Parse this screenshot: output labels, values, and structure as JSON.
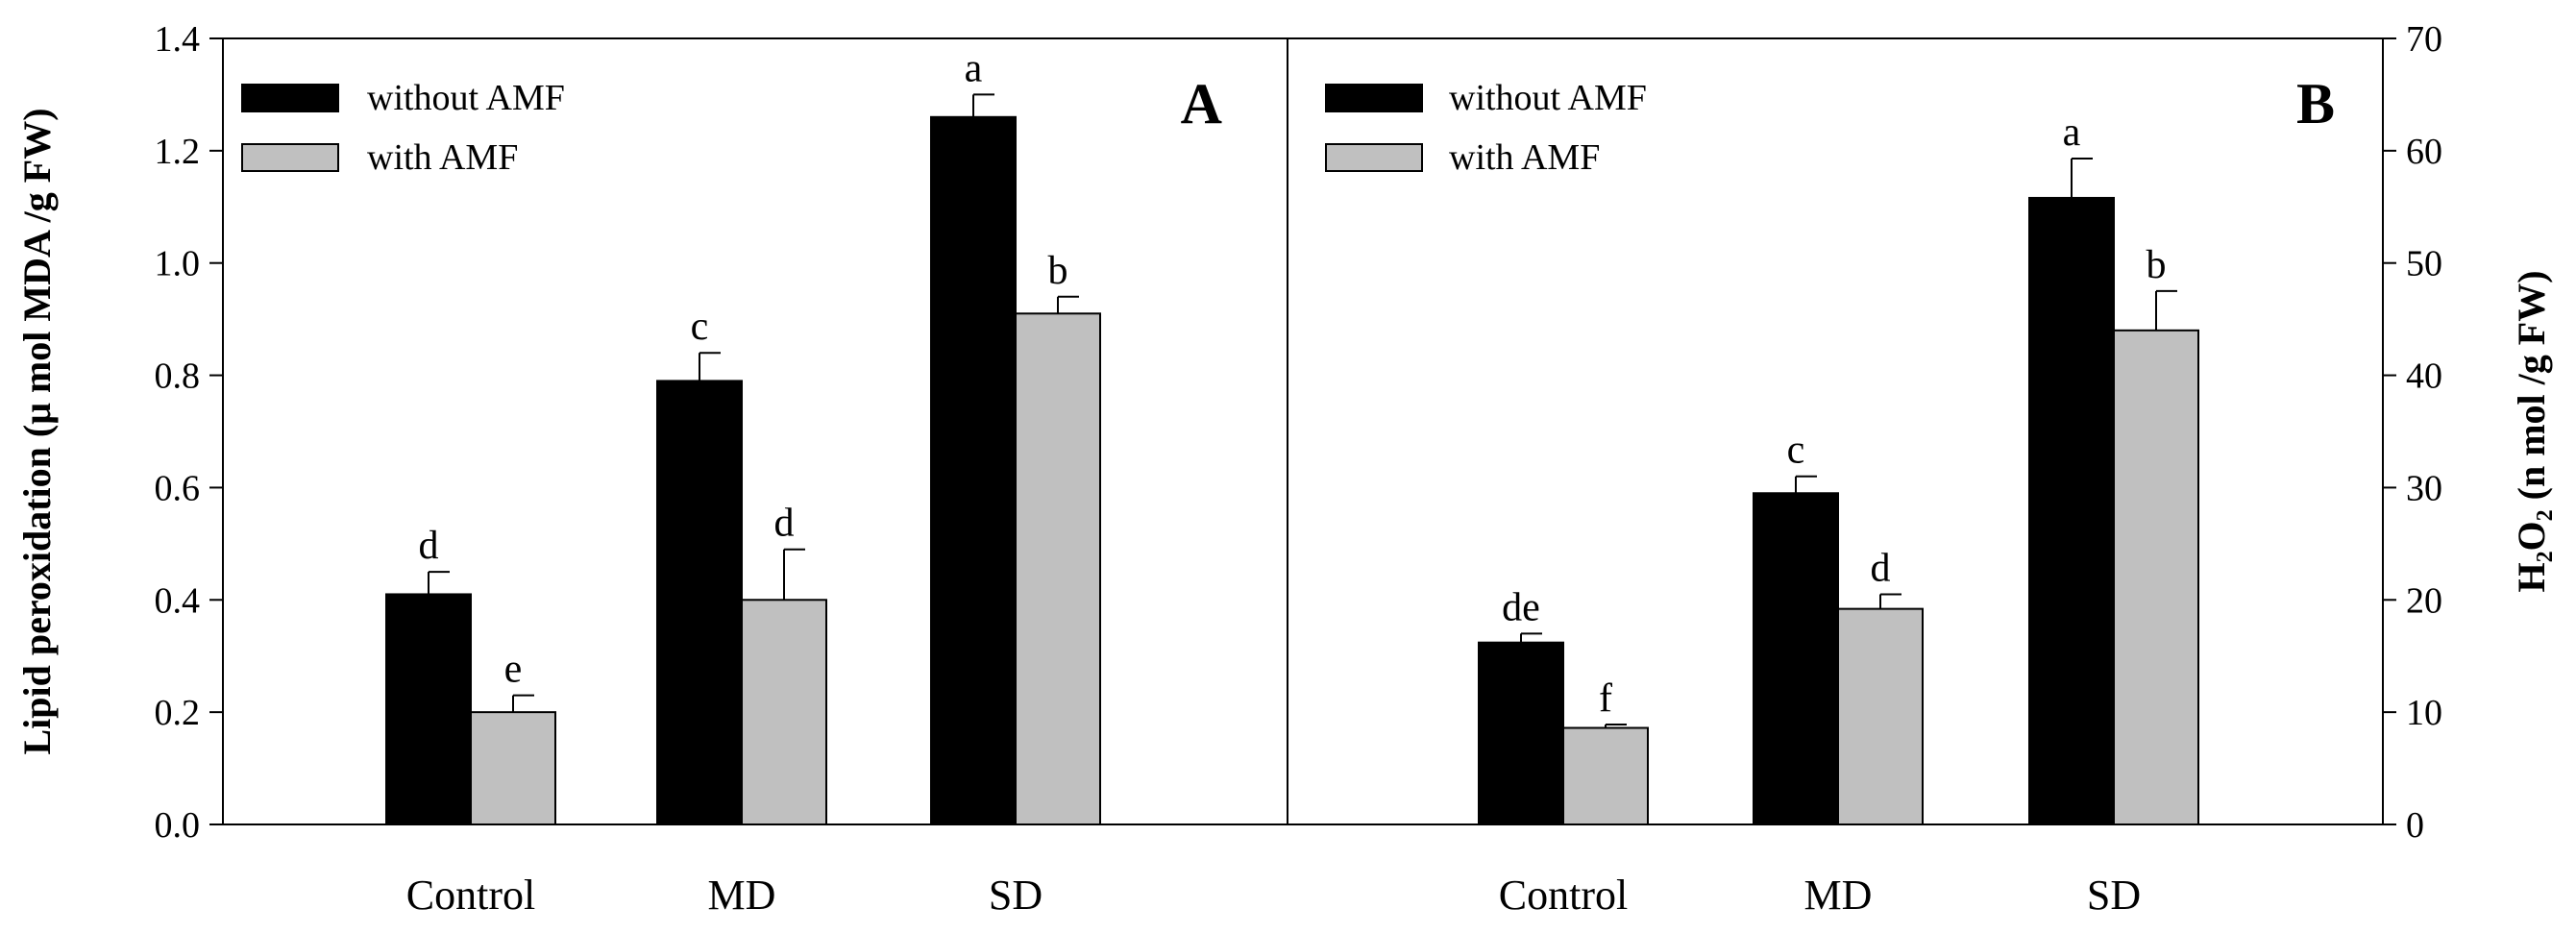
{
  "chart_data": [
    {
      "type": "bar",
      "panel_label": "A",
      "categories": [
        "Control",
        "MD",
        "SD"
      ],
      "ylabel": "Lipid peroxidation (μ mol MDA /g FW)",
      "ylim": [
        0,
        1.4
      ],
      "yticks": [
        "0.0",
        "0.2",
        "0.4",
        "0.6",
        "0.8",
        "1.0",
        "1.2",
        "1.4"
      ],
      "legend_position": "top-left",
      "series": [
        {
          "name": "without AMF",
          "color": "#000000",
          "values": [
            0.41,
            0.79,
            1.26
          ],
          "errors": [
            0.04,
            0.05,
            0.04
          ],
          "letters": [
            "d",
            "c",
            "a"
          ]
        },
        {
          "name": "with AMF",
          "color": "#c0c0c0",
          "values": [
            0.2,
            0.4,
            0.91
          ],
          "errors": [
            0.03,
            0.09,
            0.03
          ],
          "letters": [
            "e",
            "d",
            "b"
          ]
        }
      ]
    },
    {
      "type": "bar",
      "panel_label": "B",
      "categories": [
        "Control",
        "MD",
        "SD"
      ],
      "ylabel": "H₂O₂ (n mol /g FW)",
      "ylim": [
        0,
        70
      ],
      "yticks": [
        "0",
        "10",
        "20",
        "30",
        "40",
        "50",
        "60",
        "70"
      ],
      "legend_position": "top-left",
      "series": [
        {
          "name": "without AMF",
          "color": "#000000",
          "values": [
            16.2,
            29.5,
            55.8
          ],
          "errors": [
            0.8,
            1.5,
            3.5
          ],
          "letters": [
            "de",
            "c",
            "a"
          ]
        },
        {
          "name": "with AMF",
          "color": "#c0c0c0",
          "values": [
            8.6,
            19.2,
            44.0
          ],
          "errors": [
            0.3,
            1.3,
            3.5
          ],
          "letters": [
            "f",
            "d",
            "b"
          ]
        }
      ]
    }
  ]
}
